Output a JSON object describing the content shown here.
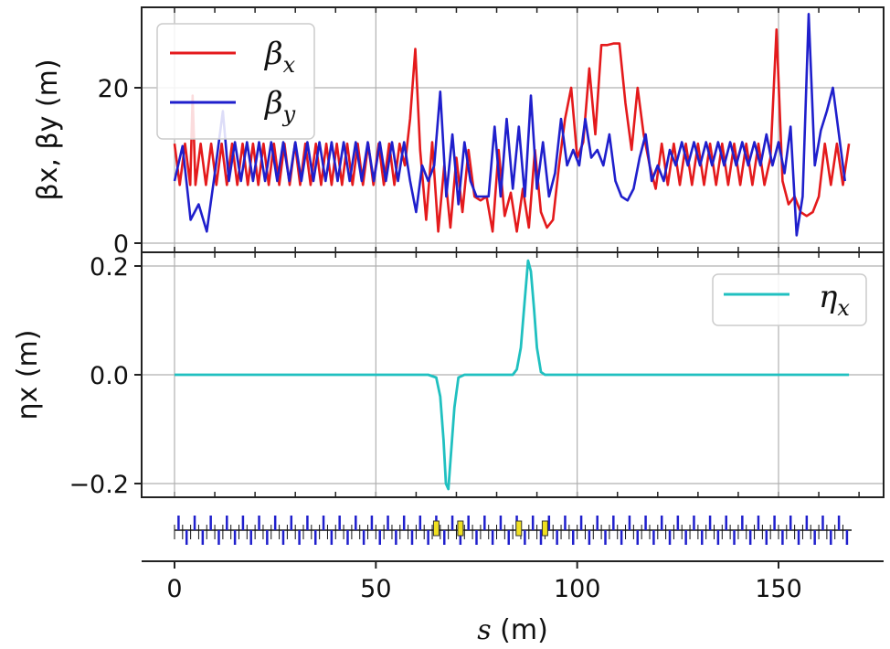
{
  "chart_data": [
    {
      "type": "line",
      "panel": "top",
      "xlim": [
        -8.5,
        177
      ],
      "ylim": [
        -0.2,
        30.0
      ],
      "yticks": [
        0,
        20
      ],
      "ylabel": "βx, βy (m)",
      "grid": true,
      "legend": {
        "placement": "top-left",
        "entries": [
          "βx",
          "βy"
        ]
      },
      "series": [
        {
          "name": "βx",
          "label_main": "β",
          "label_sub": "x",
          "color": "#e41a1c",
          "x": [
            0,
            1.3,
            2.6,
            3.9,
            4.5,
            5.2,
            6.5,
            7.8,
            9.1,
            10.4,
            11.7,
            13,
            14.3,
            15.6,
            16.9,
            18.2,
            19.5,
            20.8,
            22.1,
            23.4,
            24.7,
            26,
            27.3,
            28.6,
            29.9,
            31.2,
            32.5,
            33.8,
            35.1,
            36.4,
            37.7,
            39,
            40.3,
            41.6,
            42.9,
            44.2,
            45.5,
            46.8,
            48.1,
            49.4,
            50.7,
            52,
            53.3,
            54.6,
            55.9,
            57.2,
            58.5,
            59.8,
            61,
            62.5,
            64,
            65.5,
            67,
            68.5,
            70,
            71.5,
            73,
            74.5,
            76,
            77.5,
            79,
            80.5,
            82,
            83.5,
            85,
            86.5,
            88,
            89.5,
            91,
            92.5,
            94,
            95.5,
            97,
            98.5,
            100,
            101.5,
            103,
            104.5,
            106,
            107.5,
            109,
            110.5,
            112,
            113.5,
            115,
            116.5,
            118,
            119.5,
            121,
            122.5,
            124,
            125.5,
            127,
            128.5,
            130,
            131.5,
            133,
            134.5,
            136,
            137.5,
            139,
            140.5,
            142,
            143.5,
            145,
            146.5,
            148,
            149.5,
            151,
            152.5,
            154,
            155.5,
            157,
            158.5,
            160,
            161.5,
            163,
            164.5,
            166,
            167.5
          ],
          "y": [
            12.8,
            7.5,
            12.8,
            7.5,
            19,
            7.5,
            12.8,
            7.5,
            12.8,
            7.5,
            12.8,
            7.5,
            12.8,
            7.5,
            12.8,
            7.5,
            12.8,
            7.5,
            12.8,
            7.5,
            12.8,
            7.5,
            12.8,
            7.5,
            12.8,
            7.5,
            12.8,
            7.5,
            12.8,
            7.5,
            12.8,
            7.5,
            12.8,
            7.5,
            12.8,
            7.5,
            12.8,
            7.5,
            12.8,
            7.5,
            12.8,
            7.5,
            12.8,
            7.5,
            12.8,
            10,
            16,
            25,
            12,
            3,
            13,
            1.5,
            10,
            2,
            11,
            4,
            12,
            6,
            5.5,
            6,
            1.5,
            12,
            3.5,
            6.5,
            1.5,
            7,
            2,
            12,
            4,
            2,
            3,
            10,
            16,
            20,
            11,
            13,
            22.5,
            14,
            25.5,
            25.5,
            25.7,
            25.7,
            18,
            12,
            20,
            14,
            10,
            7,
            12.8,
            7.5,
            12.8,
            7.5,
            12.8,
            7.5,
            12.8,
            7.5,
            12.8,
            7.5,
            12.8,
            7.5,
            12.8,
            7.5,
            12.8,
            7.5,
            12.8,
            7.5,
            11,
            27.5,
            8,
            5,
            6,
            4,
            3.5,
            4,
            6,
            12.8,
            7.5,
            12.8,
            7.5,
            12.8
          ]
        },
        {
          "name": "βy",
          "label_main": "β",
          "label_sub": "y",
          "color": "#1f1fcc",
          "x": [
            0,
            2,
            4,
            6,
            8,
            10,
            12,
            13.5,
            15,
            16.5,
            18,
            19.5,
            21,
            22.5,
            24,
            25.5,
            27,
            28.5,
            30,
            31.5,
            33,
            34.5,
            36,
            37.5,
            39,
            40.5,
            42,
            43.5,
            45,
            46.5,
            48,
            49.5,
            51,
            52.5,
            54,
            55.5,
            57,
            58.5,
            60,
            61.5,
            63,
            64.5,
            66,
            67.5,
            69,
            70.5,
            72,
            73.5,
            75,
            76.5,
            78,
            79.5,
            81,
            82.5,
            84,
            85.5,
            87,
            88.5,
            90,
            91.5,
            93,
            94.5,
            96,
            97.5,
            99,
            100.5,
            102,
            103.5,
            105,
            106.5,
            108,
            109.5,
            111,
            112.5,
            114,
            115.5,
            117,
            118.5,
            120,
            121.5,
            123,
            124.5,
            126,
            127.5,
            129,
            130.5,
            132,
            133.5,
            135,
            136.5,
            138,
            139.5,
            141,
            142.5,
            144,
            145.5,
            147,
            148.5,
            150,
            151.5,
            153,
            154.5,
            156,
            157.5,
            159,
            160.5,
            162,
            163.5,
            165,
            166.5
          ],
          "y": [
            8,
            12.5,
            3,
            5,
            1.5,
            9,
            17,
            8,
            13,
            8,
            13,
            8,
            13,
            8,
            13,
            8,
            13,
            8,
            13,
            8,
            13,
            8,
            13,
            8,
            13,
            8,
            13,
            8,
            13,
            8,
            13,
            8,
            13,
            8,
            13,
            8,
            13,
            8,
            4,
            10,
            8,
            10,
            19.5,
            6,
            14,
            5,
            13,
            8,
            6,
            6,
            6,
            15,
            6,
            16,
            7,
            15,
            6,
            19,
            7,
            13,
            6,
            9,
            16,
            10,
            12,
            10,
            16,
            11,
            12,
            10,
            14,
            8,
            6,
            5.5,
            7,
            11,
            14,
            8,
            10,
            8,
            12,
            10,
            13,
            10,
            13,
            10,
            13,
            10,
            13,
            10,
            13,
            10,
            13,
            10,
            13,
            10,
            14,
            10,
            13,
            9,
            15,
            1,
            6,
            29.5,
            10,
            14.5,
            17,
            20,
            14,
            8
          ]
        }
      ]
    },
    {
      "type": "line",
      "panel": "middle",
      "xlim": [
        -8.5,
        177
      ],
      "ylim": [
        -0.235,
        0.235
      ],
      "yticks": [
        -0.2,
        0.0,
        0.2
      ],
      "ytick_labels": [
        "−0.2",
        "0.0",
        "0.2"
      ],
      "ylabel": "ηx (m)",
      "grid": true,
      "legend": {
        "placement": "top-right",
        "entries": [
          "ηx"
        ]
      },
      "series": [
        {
          "name": "ηx",
          "label_main": "η",
          "label_sub": "x",
          "color": "#20c0c0",
          "x": [
            0,
            63,
            65,
            66,
            66.8,
            67.4,
            68,
            68.5,
            69.5,
            70.5,
            72,
            84,
            85,
            86,
            87,
            87.8,
            88.5,
            89.3,
            90,
            91,
            92,
            94,
            167.5
          ],
          "y": [
            0,
            0,
            -0.005,
            -0.04,
            -0.12,
            -0.2,
            -0.21,
            -0.16,
            -0.06,
            -0.005,
            0,
            0,
            0.01,
            0.05,
            0.14,
            0.21,
            0.19,
            0.12,
            0.05,
            0.005,
            0,
            0,
            0
          ]
        }
      ]
    },
    {
      "type": "lattice",
      "panel": "bottom",
      "xlim": [
        -8.5,
        177
      ],
      "xticks": [
        0,
        50,
        100,
        150
      ],
      "xtick_labels": [
        "0",
        "50",
        "100",
        "150"
      ],
      "xlabel": "s (m)",
      "xlabel_main": "s",
      "xlabel_unit": " (m)",
      "quad_color": "#1f1fcc",
      "dipole_color": "#f0e020",
      "quadrupoles_up": [
        1,
        5,
        9,
        13,
        17,
        21,
        25,
        29,
        33,
        37,
        41,
        45,
        49,
        53,
        57,
        61,
        65,
        69,
        73,
        77,
        81,
        85,
        89,
        93,
        97,
        101,
        105,
        109,
        113,
        117,
        121,
        125,
        129,
        133,
        137,
        141,
        145,
        149,
        153,
        157,
        161,
        165
      ],
      "quadrupoles_down": [
        3,
        7,
        11,
        15,
        19,
        23,
        27,
        31,
        35,
        39,
        43,
        47,
        51,
        55,
        59,
        63,
        67,
        71,
        75,
        79,
        83,
        87,
        91,
        95,
        99,
        103,
        107,
        111,
        115,
        119,
        123,
        127,
        131,
        135,
        139,
        143,
        147,
        151,
        155,
        159,
        163,
        167
      ],
      "dipoles": [
        65,
        71,
        85.5,
        92
      ]
    }
  ]
}
